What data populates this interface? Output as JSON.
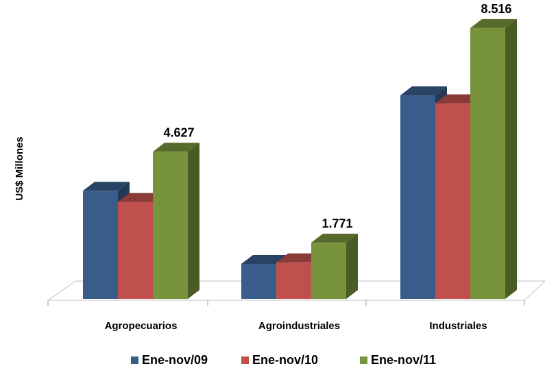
{
  "chart_data": {
    "type": "bar",
    "style": "3d-clustered-column",
    "title": "",
    "xlabel": "",
    "ylabel": "US$ Millones",
    "categories": [
      "Agropecuarios",
      "Agroindustriales",
      "Industriales"
    ],
    "series": [
      {
        "name": "Ene-nov/09",
        "color": "#385d8a",
        "values": [
          3400,
          1100,
          6400
        ]
      },
      {
        "name": "Ene-nov/10",
        "color": "#c0504d",
        "values": [
          3050,
          1150,
          6150
        ]
      },
      {
        "name": "Ene-nov/11",
        "color": "#77933c",
        "values": [
          4627,
          1771,
          8516
        ]
      }
    ],
    "data_labels": [
      {
        "series": 2,
        "category": 0,
        "text": "4.627"
      },
      {
        "series": 2,
        "category": 1,
        "text": "1.771"
      },
      {
        "series": 2,
        "category": 2,
        "text": "8.516"
      }
    ],
    "ylim": [
      0,
      9000
    ],
    "gridlines": false,
    "y_axis_ticks_shown": false,
    "legend_position": "bottom"
  }
}
